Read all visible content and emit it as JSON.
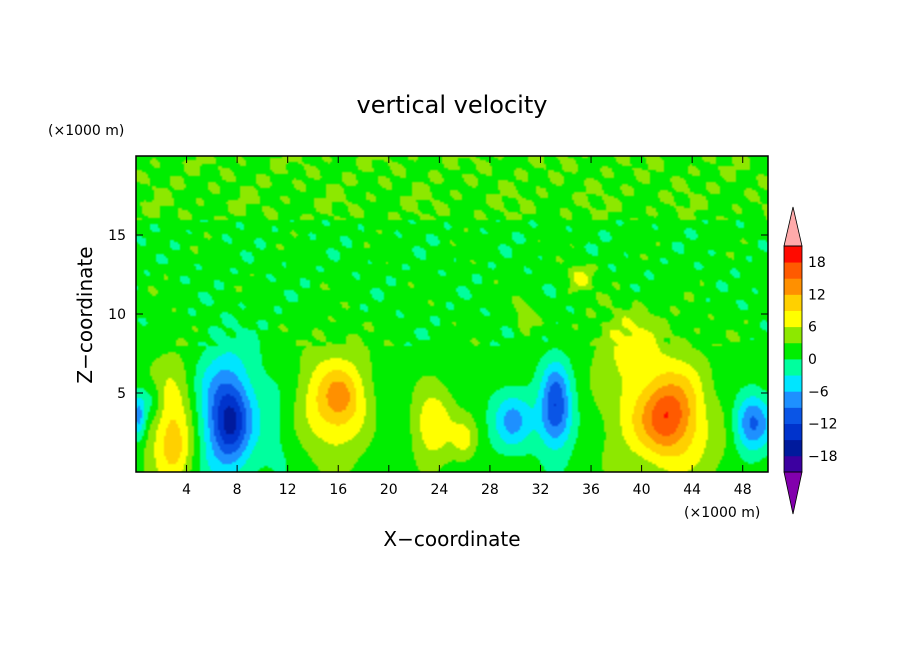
{
  "chart_data": {
    "type": "heatmap",
    "title": "vertical velocity",
    "xlabel": "X−coordinate",
    "ylabel": "Z−coordinate",
    "x_unit": "(×1000 m)",
    "y_unit": "(×1000 m)",
    "xlim": [
      0,
      50
    ],
    "ylim": [
      0,
      20
    ],
    "x_ticks": [
      4,
      8,
      12,
      16,
      20,
      24,
      28,
      32,
      36,
      40,
      44,
      48
    ],
    "y_ticks": [
      5,
      10,
      15
    ],
    "colorbar": {
      "levels": [
        -21,
        -18,
        -15,
        -12,
        -9,
        -6,
        -3,
        0,
        3,
        6,
        9,
        12,
        15,
        18,
        21
      ],
      "tick_labels": [
        18,
        12,
        6,
        0,
        -6,
        -12,
        -18
      ],
      "colors": [
        "#8200ad",
        "#3c00a0",
        "#001a9c",
        "#0033cc",
        "#0a55e6",
        "#1e90ff",
        "#00e5ff",
        "#00ff9e",
        "#00ee00",
        "#8de800",
        "#ffff00",
        "#ffd000",
        "#ff9000",
        "#ff5a00",
        "#ff0a00",
        "#ffaaaa"
      ],
      "extend": "both"
    },
    "features": [
      {
        "x": 1.3,
        "z": 4.5,
        "sx": 0.65,
        "sz": 0.9,
        "w": -5
      },
      {
        "x": 2.8,
        "z": 3.0,
        "sx": 1.4,
        "sz": 2.8,
        "w": 8
      },
      {
        "x": 3.2,
        "z": 1.3,
        "sx": 0.9,
        "sz": 1.2,
        "w": 3
      },
      {
        "x": 7.2,
        "z": 3.6,
        "sx": 1.6,
        "sz": 2.6,
        "w": -13
      },
      {
        "x": 7.5,
        "z": 3.0,
        "sx": 0.8,
        "sz": 1.4,
        "w": -5
      },
      {
        "x": 15.8,
        "z": 4.4,
        "sx": 2.0,
        "sz": 2.3,
        "w": 10
      },
      {
        "x": 16.2,
        "z": 4.8,
        "sx": 0.8,
        "sz": 0.9,
        "w": 3
      },
      {
        "x": 23.5,
        "z": 3.0,
        "sx": 1.2,
        "sz": 1.6,
        "w": 8
      },
      {
        "x": 26.0,
        "z": 2.0,
        "sx": 0.7,
        "sz": 1.0,
        "w": 5
      },
      {
        "x": 29.8,
        "z": 3.3,
        "sx": 1.1,
        "sz": 1.3,
        "w": -8
      },
      {
        "x": 33.2,
        "z": 5.2,
        "sx": 0.8,
        "sz": 1.5,
        "w": -8
      },
      {
        "x": 33.2,
        "z": 3.2,
        "sx": 1.0,
        "sz": 1.4,
        "w": -9
      },
      {
        "x": 30.8,
        "z": 9.8,
        "sx": 0.6,
        "sz": 0.6,
        "w": 5
      },
      {
        "x": 35.1,
        "z": 12.3,
        "sx": 0.7,
        "sz": 0.6,
        "w": 6
      },
      {
        "x": 38.8,
        "z": 8.3,
        "sx": 1.8,
        "sz": 1.5,
        "w": 5
      },
      {
        "x": 42.3,
        "z": 3.6,
        "sx": 3.1,
        "sz": 2.6,
        "w": 11
      },
      {
        "x": 42.0,
        "z": 3.5,
        "sx": 1.2,
        "sz": 1.4,
        "w": 6
      },
      {
        "x": 48.7,
        "z": 3.1,
        "sx": 1.1,
        "sz": 1.3,
        "w": -12
      },
      {
        "x": 0.2,
        "z": 3.5,
        "sx": 0.4,
        "sz": 1.0,
        "w": -9
      },
      {
        "x": 11.4,
        "z": 3.0,
        "sx": 1.0,
        "sz": 2.0,
        "w": -2
      },
      {
        "x": 20.0,
        "z": 3.0,
        "sx": 1.0,
        "sz": 2.0,
        "w": -2
      },
      {
        "x": 45.5,
        "z": 4.5,
        "sx": 1.0,
        "sz": 1.8,
        "w": -3
      }
    ]
  }
}
